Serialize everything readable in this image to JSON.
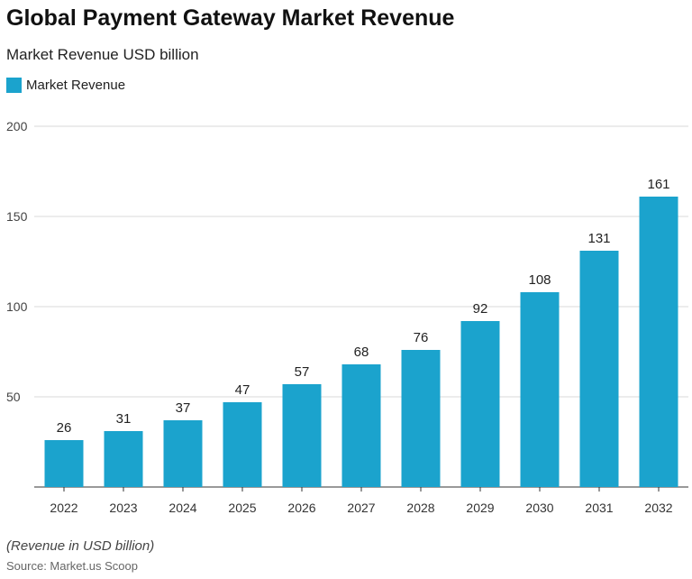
{
  "chart_data": {
    "type": "bar",
    "title": "Global Payment Gateway Market Revenue",
    "subtitle": "Market Revenue USD billion",
    "legend": "Market Revenue",
    "legend_placement": "top-left",
    "categories": [
      "2022",
      "2023",
      "2024",
      "2025",
      "2026",
      "2027",
      "2028",
      "2029",
      "2030",
      "2031",
      "2032"
    ],
    "series": [
      {
        "name": "Market Revenue",
        "values": [
          26,
          31,
          37,
          47,
          57,
          68,
          76,
          92,
          108,
          131,
          161
        ]
      }
    ],
    "ylim": [
      0,
      200
    ],
    "yticks": [
      50,
      100,
      150,
      200
    ],
    "grid": true,
    "color": "#1ba3cd",
    "note": "(Revenue in USD billion)",
    "source": "Source: Market.us Scoop"
  }
}
